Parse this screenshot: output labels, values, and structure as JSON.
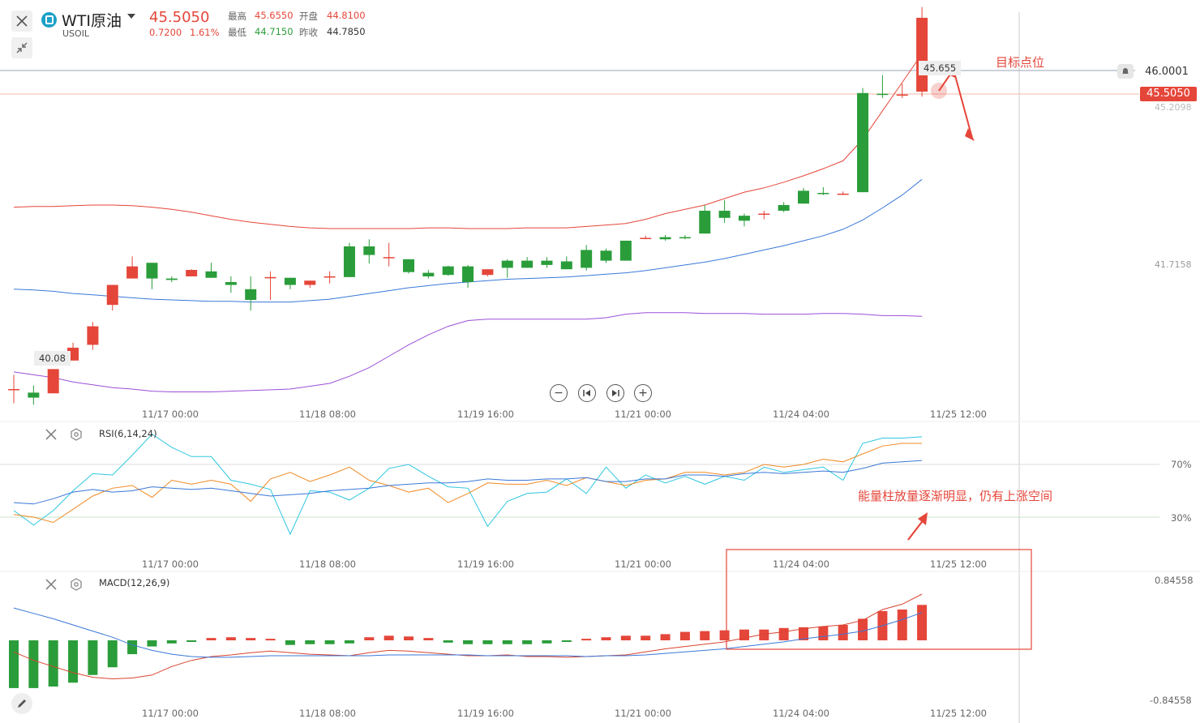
{
  "header": {
    "symbol_name": "WTI原油",
    "symbol_code": "USOIL",
    "last_price": "45.5050",
    "change": "0.7200",
    "change_pct": "1.61%",
    "high_label": "最高",
    "high_value": "45.6550",
    "open_label": "开盘",
    "open_value": "44.8100",
    "low_label": "最低",
    "low_value": "44.7150",
    "prev_close_label": "昨收",
    "prev_close_value": "44.7850"
  },
  "price_axis": {
    "alert_price": "46.0001",
    "current_price": "45.5050",
    "upper_band_label": "45.2098",
    "mid_label": "41.7158",
    "high_marker": "45.655",
    "low_marker": "40.08"
  },
  "time_labels": [
    "11/17 00:00",
    "11/18 08:00",
    "11/19 16:00",
    "11/21 00:00",
    "11/24 04:00",
    "11/25 12:00"
  ],
  "rsi": {
    "label": "RSI(6,14,24)",
    "level_high": "70%",
    "level_low": "30%"
  },
  "macd": {
    "label": "MACD(12,26,9)",
    "axis_top": "0.84558",
    "axis_bottom": "-0.84558"
  },
  "annotations": {
    "target": "目标点位",
    "volume_note": "能量柱放量逐渐明显，仍有上涨空间"
  },
  "colors": {
    "up": "#e5463a",
    "down": "#2a9d3a",
    "mid_band": "#3a78d8",
    "lower_band": "#9b4fd8",
    "rsi6": "#2fc7e0",
    "rsi14": "#f08a24",
    "rsi24": "#3a78d8"
  },
  "chart_data": {
    "type": "candlestick",
    "ohlc": [
      {
        "o": 40.3,
        "h": 40.5,
        "l": 40.1,
        "c": 40.3
      },
      {
        "o": 40.25,
        "h": 40.35,
        "l": 40.08,
        "c": 40.18
      },
      {
        "o": 40.24,
        "h": 40.58,
        "l": 40.24,
        "c": 40.58
      },
      {
        "o": 40.7,
        "h": 40.95,
        "l": 40.7,
        "c": 40.88
      },
      {
        "o": 40.92,
        "h": 41.24,
        "l": 40.85,
        "c": 41.18
      },
      {
        "o": 41.48,
        "h": 41.76,
        "l": 41.4,
        "c": 41.76
      },
      {
        "o": 41.85,
        "h": 42.16,
        "l": 41.85,
        "c": 42.02
      },
      {
        "o": 42.07,
        "h": 42.07,
        "l": 41.7,
        "c": 41.85
      },
      {
        "o": 41.85,
        "h": 41.88,
        "l": 41.8,
        "c": 41.83
      },
      {
        "o": 41.88,
        "h": 41.98,
        "l": 41.88,
        "c": 41.97
      },
      {
        "o": 41.95,
        "h": 42.07,
        "l": 41.86,
        "c": 41.86
      },
      {
        "o": 41.8,
        "h": 41.88,
        "l": 41.65,
        "c": 41.76
      },
      {
        "o": 41.7,
        "h": 41.88,
        "l": 41.4,
        "c": 41.55
      },
      {
        "o": 41.87,
        "h": 41.95,
        "l": 41.55,
        "c": 41.87
      },
      {
        "o": 41.86,
        "h": 41.86,
        "l": 41.7,
        "c": 41.76
      },
      {
        "o": 41.76,
        "h": 41.82,
        "l": 41.72,
        "c": 41.82
      },
      {
        "o": 41.88,
        "h": 41.95,
        "l": 41.78,
        "c": 41.88
      },
      {
        "o": 42.3,
        "h": 42.35,
        "l": 41.87,
        "c": 41.87
      },
      {
        "o": 42.3,
        "h": 42.4,
        "l": 42.06,
        "c": 42.18
      },
      {
        "o": 42.15,
        "h": 42.35,
        "l": 42.02,
        "c": 42.15
      },
      {
        "o": 42.12,
        "h": 42.12,
        "l": 41.92,
        "c": 41.94
      },
      {
        "o": 41.93,
        "h": 41.97,
        "l": 41.85,
        "c": 41.88
      },
      {
        "o": 42.02,
        "h": 42.03,
        "l": 41.89,
        "c": 41.9
      },
      {
        "o": 42.02,
        "h": 42.04,
        "l": 41.72,
        "c": 41.8
      },
      {
        "o": 41.9,
        "h": 41.98,
        "l": 41.88,
        "c": 41.98
      },
      {
        "o": 42.1,
        "h": 42.12,
        "l": 41.86,
        "c": 42.0
      },
      {
        "o": 42.1,
        "h": 42.15,
        "l": 42.0,
        "c": 42.0
      },
      {
        "o": 42.1,
        "h": 42.15,
        "l": 42.0,
        "c": 42.04
      },
      {
        "o": 42.09,
        "h": 42.16,
        "l": 41.98,
        "c": 41.98
      },
      {
        "o": 42.25,
        "h": 42.32,
        "l": 41.96,
        "c": 42.0
      },
      {
        "o": 42.24,
        "h": 42.27,
        "l": 42.07,
        "c": 42.1
      },
      {
        "o": 42.38,
        "h": 42.38,
        "l": 42.1,
        "c": 42.1
      },
      {
        "o": 42.42,
        "h": 42.45,
        "l": 42.4,
        "c": 42.42
      },
      {
        "o": 42.43,
        "h": 42.46,
        "l": 42.38,
        "c": 42.4
      },
      {
        "o": 42.43,
        "h": 42.46,
        "l": 42.4,
        "c": 42.42
      },
      {
        "o": 42.8,
        "h": 42.88,
        "l": 42.48,
        "c": 42.48
      },
      {
        "o": 42.8,
        "h": 42.95,
        "l": 42.63,
        "c": 42.7
      },
      {
        "o": 42.73,
        "h": 42.76,
        "l": 42.58,
        "c": 42.66
      },
      {
        "o": 42.76,
        "h": 42.8,
        "l": 42.68,
        "c": 42.76
      },
      {
        "o": 42.88,
        "h": 42.92,
        "l": 42.78,
        "c": 42.8
      },
      {
        "o": 43.08,
        "h": 43.12,
        "l": 42.9,
        "c": 42.9
      },
      {
        "o": 43.05,
        "h": 43.13,
        "l": 43.02,
        "c": 43.04
      },
      {
        "o": 43.04,
        "h": 43.07,
        "l": 43.02,
        "c": 43.04
      },
      {
        "o": 44.45,
        "h": 44.52,
        "l": 43.06,
        "c": 43.06
      },
      {
        "o": 44.44,
        "h": 44.7,
        "l": 44.38,
        "c": 44.43
      },
      {
        "o": 44.43,
        "h": 44.58,
        "l": 44.38,
        "c": 44.43
      },
      {
        "o": 44.47,
        "h": 45.655,
        "l": 44.4,
        "c": 45.505
      }
    ],
    "bollinger": {
      "upper": [
        42.85,
        42.86,
        42.86,
        42.87,
        42.88,
        42.88,
        42.87,
        42.85,
        42.82,
        42.78,
        42.73,
        42.68,
        42.64,
        42.61,
        42.58,
        42.56,
        42.55,
        42.55,
        42.55,
        42.55,
        42.55,
        42.56,
        42.56,
        42.55,
        42.55,
        42.55,
        42.56,
        42.56,
        42.56,
        42.58,
        42.6,
        42.62,
        42.68,
        42.76,
        42.82,
        42.88,
        42.97,
        43.06,
        43.12,
        43.2,
        43.29,
        43.39,
        43.5,
        43.8,
        44.2,
        44.6,
        45.0
      ],
      "mid": [
        41.7,
        41.69,
        41.67,
        41.64,
        41.62,
        41.6,
        41.58,
        41.56,
        41.55,
        41.54,
        41.53,
        41.53,
        41.52,
        41.52,
        41.52,
        41.54,
        41.56,
        41.6,
        41.64,
        41.68,
        41.72,
        41.75,
        41.78,
        41.8,
        41.82,
        41.84,
        41.85,
        41.86,
        41.87,
        41.89,
        41.91,
        41.93,
        41.96,
        42.0,
        42.04,
        42.08,
        42.13,
        42.19,
        42.25,
        42.31,
        42.38,
        42.45,
        42.54,
        42.67,
        42.84,
        43.02,
        43.24
      ],
      "lower": [
        40.54,
        40.5,
        40.46,
        40.4,
        40.36,
        40.32,
        40.3,
        40.27,
        40.26,
        40.26,
        40.26,
        40.27,
        40.28,
        40.29,
        40.3,
        40.34,
        40.38,
        40.48,
        40.6,
        40.76,
        40.92,
        41.06,
        41.18,
        41.26,
        41.28,
        41.28,
        41.28,
        41.28,
        41.28,
        41.28,
        41.3,
        41.35,
        41.37,
        41.37,
        41.37,
        41.36,
        41.36,
        41.36,
        41.35,
        41.35,
        41.35,
        41.36,
        41.36,
        41.35,
        41.33,
        41.33,
        41.32
      ]
    },
    "rsi": {
      "x": [
        0,
        1,
        2,
        3,
        4,
        5,
        6,
        7,
        8,
        9,
        10,
        11,
        12,
        13,
        14,
        15,
        16,
        17,
        18,
        19,
        20,
        21,
        22,
        23,
        24,
        25,
        26,
        27,
        28,
        29,
        30,
        31,
        32,
        33,
        34,
        35,
        36,
        37,
        38,
        39,
        40,
        41,
        42,
        43,
        44,
        45,
        46
      ],
      "rsi6": [
        35,
        24,
        35,
        50,
        63,
        62,
        77,
        93,
        83,
        76,
        76,
        58,
        55,
        51,
        17,
        50,
        49,
        43,
        52,
        67,
        70,
        61,
        53,
        52,
        23,
        42,
        48,
        49,
        59,
        48,
        68,
        52,
        62,
        56,
        61,
        55,
        61,
        58,
        68,
        64,
        66,
        68,
        58,
        86,
        90,
        90,
        91
      ],
      "rsi14": [
        32,
        30,
        26,
        36,
        46,
        52,
        54,
        45,
        58,
        55,
        58,
        55,
        42,
        59,
        64,
        57,
        62,
        68,
        58,
        54,
        49,
        52,
        41,
        48,
        56,
        55,
        55,
        58,
        54,
        60,
        57,
        54,
        58,
        59,
        64,
        64,
        62,
        64,
        70,
        68,
        70,
        74,
        72,
        78,
        84,
        86,
        86
      ],
      "rsi24": [
        41,
        40,
        44,
        49,
        51,
        49,
        50,
        53,
        52,
        51,
        52,
        50,
        48,
        46,
        47,
        48,
        50,
        51,
        52,
        54,
        55,
        56,
        56,
        57,
        59,
        58,
        58,
        59,
        59,
        60,
        57,
        57,
        59,
        59,
        62,
        62,
        61,
        63,
        64,
        63,
        64,
        65,
        64,
        67,
        71,
        72,
        73
      ]
    },
    "macd": {
      "dif": [
        -0.15,
        -0.26,
        -0.34,
        -0.42,
        -0.48,
        -0.5,
        -0.49,
        -0.45,
        -0.34,
        -0.26,
        -0.21,
        -0.19,
        -0.16,
        -0.14,
        -0.16,
        -0.18,
        -0.19,
        -0.2,
        -0.16,
        -0.13,
        -0.14,
        -0.16,
        -0.18,
        -0.2,
        -0.2,
        -0.19,
        -0.21,
        -0.21,
        -0.22,
        -0.21,
        -0.2,
        -0.19,
        -0.15,
        -0.11,
        -0.08,
        -0.05,
        -0.02,
        0.03,
        0.08,
        0.11,
        0.15,
        0.18,
        0.2,
        0.26,
        0.4,
        0.47,
        0.6
      ],
      "dea": [
        0.42,
        0.35,
        0.28,
        0.2,
        0.12,
        0.04,
        -0.06,
        -0.13,
        -0.18,
        -0.21,
        -0.22,
        -0.22,
        -0.21,
        -0.2,
        -0.2,
        -0.2,
        -0.2,
        -0.2,
        -0.2,
        -0.19,
        -0.19,
        -0.19,
        -0.19,
        -0.19,
        -0.2,
        -0.2,
        -0.2,
        -0.2,
        -0.2,
        -0.21,
        -0.2,
        -0.2,
        -0.19,
        -0.17,
        -0.15,
        -0.13,
        -0.11,
        -0.08,
        -0.05,
        -0.02,
        0.02,
        0.05,
        0.08,
        0.12,
        0.19,
        0.27,
        0.36
      ],
      "hist": [
        -0.62,
        -0.62,
        -0.6,
        -0.55,
        -0.45,
        -0.35,
        -0.18,
        -0.08,
        -0.04,
        -0.02,
        0.03,
        0.04,
        0.03,
        0.02,
        -0.06,
        -0.05,
        -0.05,
        -0.04,
        0.04,
        0.06,
        0.05,
        0.03,
        -0.03,
        -0.05,
        -0.05,
        -0.05,
        -0.05,
        -0.04,
        -0.02,
        0.02,
        0.04,
        0.06,
        0.06,
        0.08,
        0.11,
        0.12,
        0.13,
        0.14,
        0.14,
        0.16,
        0.17,
        0.18,
        0.2,
        0.28,
        0.38,
        0.4,
        0.46
      ]
    }
  }
}
